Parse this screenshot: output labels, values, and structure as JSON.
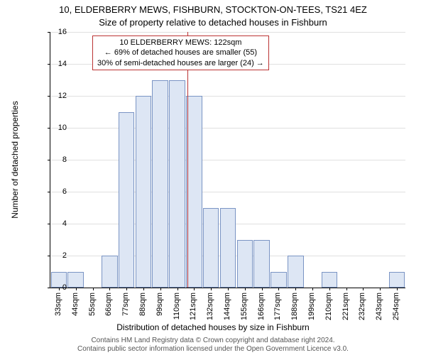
{
  "title_line1": "10, ELDERBERRY MEWS, FISHBURN, STOCKTON-ON-TEES, TS21 4EZ",
  "title_line2": "Size of property relative to detached houses in Fishburn",
  "ylabel": "Number of detached properties",
  "xlabel": "Distribution of detached houses by size in Fishburn",
  "footer1": "Contains HM Land Registry data © Crown copyright and database right 2024.",
  "footer2": "Contains public sector information licensed under the Open Government Licence v3.0.",
  "info_box": {
    "line1": "10 ELDERBERRY MEWS: 122sqm",
    "line2": "← 69% of detached houses are smaller (55)",
    "line3": "30% of semi-detached houses are larger (24) →"
  },
  "chart": {
    "ymax": 16,
    "ytick_step": 2,
    "bar_fill": "#dde6f4",
    "bar_border": "#7a94c4",
    "grid_color": "#e0e0e0",
    "info_border": "#b33",
    "marker_x_index": 8.1,
    "categories": [
      "33sqm",
      "44sqm",
      "55sqm",
      "66sqm",
      "77sqm",
      "88sqm",
      "99sqm",
      "110sqm",
      "121sqm",
      "132sqm",
      "144sqm",
      "155sqm",
      "166sqm",
      "177sqm",
      "188sqm",
      "199sqm",
      "210sqm",
      "221sqm",
      "232sqm",
      "243sqm",
      "254sqm"
    ],
    "values": [
      1,
      1,
      0,
      2,
      11,
      12,
      13,
      13,
      12,
      5,
      5,
      3,
      3,
      1,
      2,
      0,
      1,
      0,
      0,
      0,
      1
    ]
  }
}
